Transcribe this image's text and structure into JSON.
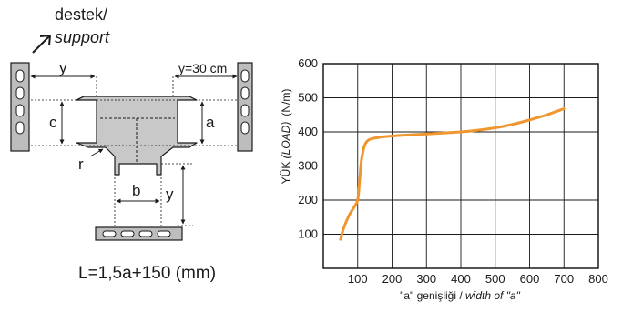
{
  "diagram": {
    "support_label_line1": "destek/",
    "support_label_line2": "support",
    "dim_y_top": "y",
    "dim_y_30": "y=30 cm",
    "dim_c": "c",
    "dim_a": "a",
    "dim_r": "r",
    "dim_b": "b",
    "dim_y_side": "y",
    "formula": "L=1,5a+150 (mm)",
    "formula_color": "#f0962e",
    "part_fill": "#c8c8c8",
    "support_fill": "#bdbdbd"
  },
  "chart_data": {
    "type": "line",
    "xlabel_prefix": "\"a\" genişliği / ",
    "xlabel_italic": "width of \"a\"",
    "ylabel_italic_prefix": "YÜK ",
    "ylabel_italic": "(LOAD)",
    "ylabel_unit": "(N/m)",
    "xlim": [
      0,
      800
    ],
    "ylim": [
      0,
      600
    ],
    "xticks": [
      100,
      200,
      300,
      400,
      500,
      600,
      700,
      800
    ],
    "yticks": [
      100,
      200,
      300,
      400,
      500,
      600
    ],
    "grid": true,
    "series": [
      {
        "color": "#f0962e",
        "x": [
          50,
          60,
          75,
          90,
          100,
          105,
          110,
          115,
          120,
          130,
          150,
          200,
          300,
          400,
          450,
          500,
          550,
          600,
          650,
          700
        ],
        "y": [
          85,
          120,
          155,
          180,
          200,
          250,
          310,
          340,
          360,
          375,
          382,
          388,
          394,
          400,
          405,
          412,
          422,
          435,
          450,
          468
        ]
      }
    ]
  }
}
